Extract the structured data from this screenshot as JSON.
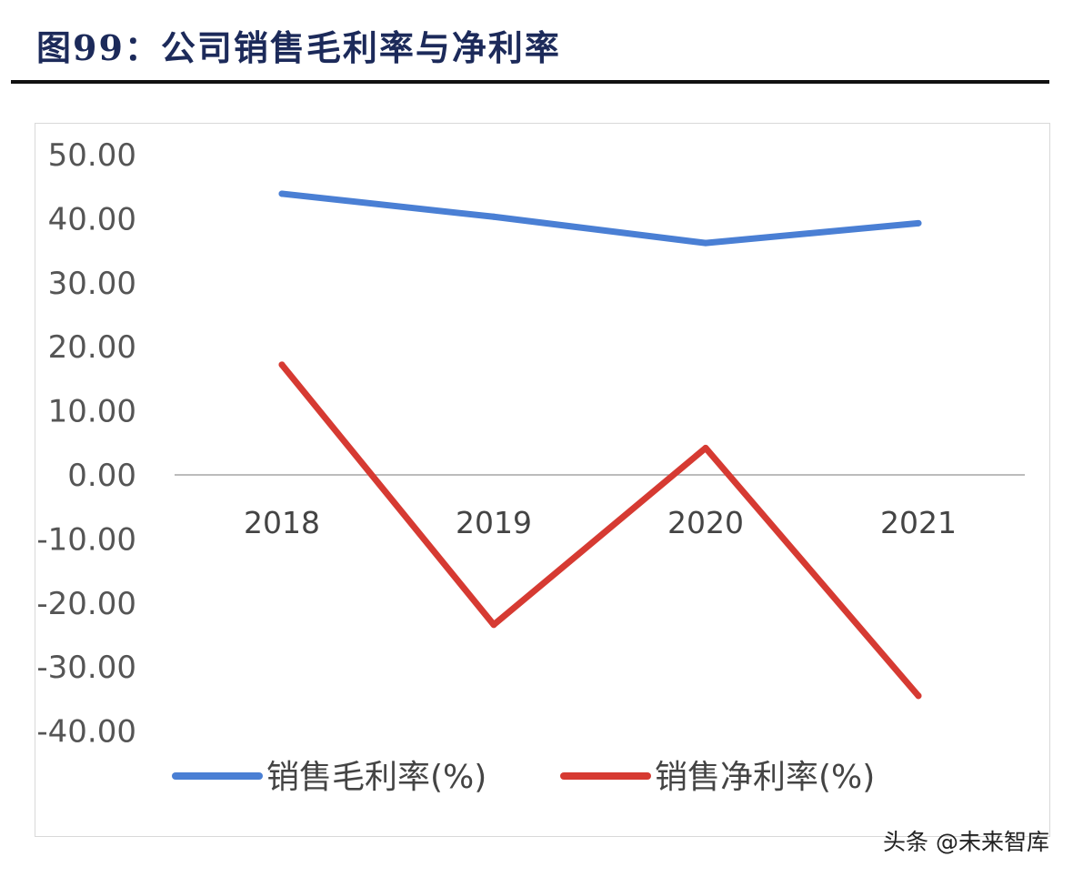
{
  "title": "图99：公司销售毛利率与净利率",
  "watermark": "头条 @未来智库",
  "chart_data": {
    "type": "line",
    "title": "",
    "categories": [
      "2018",
      "2019",
      "2020",
      "2021"
    ],
    "ylim": [
      -40,
      50
    ],
    "yticks": [
      "50.00",
      "40.00",
      "30.00",
      "20.00",
      "10.00",
      "0.00",
      "-10.00",
      "-20.00",
      "-30.00",
      "-40.00"
    ],
    "ytick_values": [
      50,
      40,
      30,
      20,
      10,
      0,
      -10,
      -20,
      -30,
      -40
    ],
    "grid": false,
    "legend": "bottom",
    "series": [
      {
        "name": "销售毛利率(%)",
        "color": "#4a7fd4",
        "values": [
          43.9,
          40.3,
          36.2,
          39.3
        ]
      },
      {
        "name": "销售净利率(%)",
        "color": "#d63a32",
        "values": [
          17.2,
          -23.4,
          4.2,
          -34.5
        ]
      }
    ]
  }
}
